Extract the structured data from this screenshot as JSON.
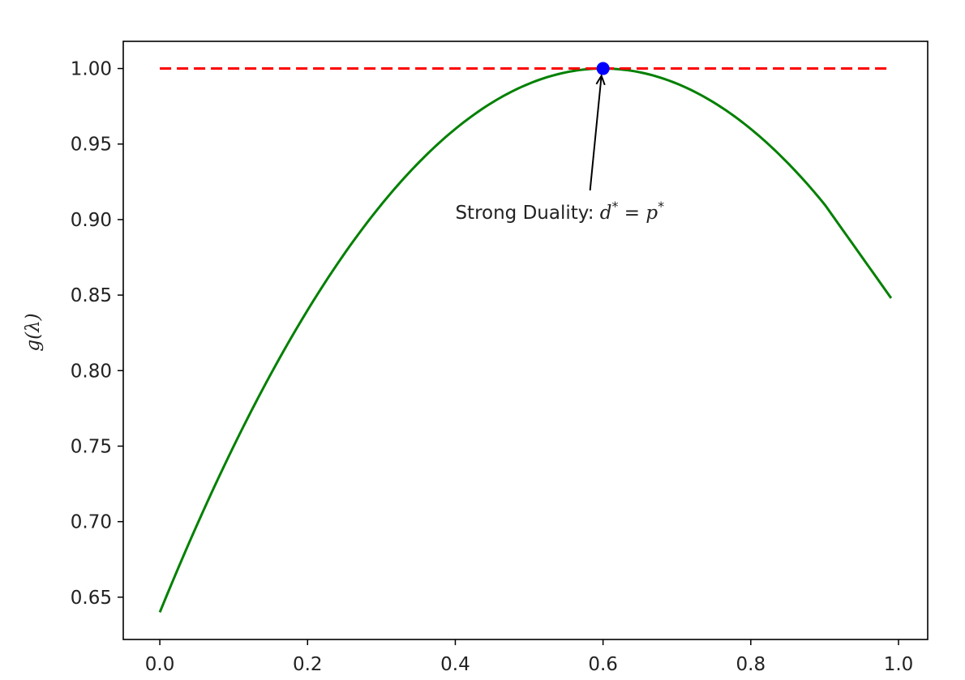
{
  "chart_data": {
    "type": "line",
    "title": "",
    "xlabel": "",
    "ylabel": "g(λ)",
    "xlim": [
      -0.0495,
      1.0395
    ],
    "ylim": [
      0.622,
      1.018
    ],
    "x_ticks": [
      0.0,
      0.2,
      0.4,
      0.6,
      0.8,
      1.0
    ],
    "x_tick_labels": [
      "0.0",
      "0.2",
      "0.4",
      "0.6",
      "0.8",
      "1.0"
    ],
    "y_ticks": [
      0.65,
      0.7,
      0.75,
      0.8,
      0.85,
      0.9,
      0.95,
      1.0
    ],
    "y_tick_labels": [
      "0.65",
      "0.70",
      "0.75",
      "0.80",
      "0.85",
      "0.90",
      "0.95",
      "1.00"
    ],
    "grid": false,
    "series": [
      {
        "style": "solid",
        "color": "#008000",
        "x": [
          0.0,
          0.1,
          0.2,
          0.3,
          0.4,
          0.5,
          0.6,
          0.7,
          0.8,
          0.9,
          0.99
        ],
        "y": [
          0.64,
          0.75,
          0.84,
          0.91,
          0.96,
          0.99,
          1.0,
          0.99,
          0.96,
          0.91,
          0.848
        ]
      },
      {
        "style": "dashed",
        "color": "#ff0000",
        "x": [
          0.0,
          0.99
        ],
        "y": [
          1.0,
          1.0
        ]
      }
    ],
    "points": [
      {
        "x": 0.6,
        "y": 1.0,
        "color": "#0000ff"
      }
    ],
    "annotation": {
      "text_prefix": "Strong Duality: ",
      "math_lhs": "d",
      "math_sup1": "*",
      "math_eq": " = ",
      "math_rhs": "p",
      "math_sup2": "*",
      "x": 0.6,
      "y": 1.0,
      "text_x": 0.4,
      "text_y": 0.9
    }
  }
}
